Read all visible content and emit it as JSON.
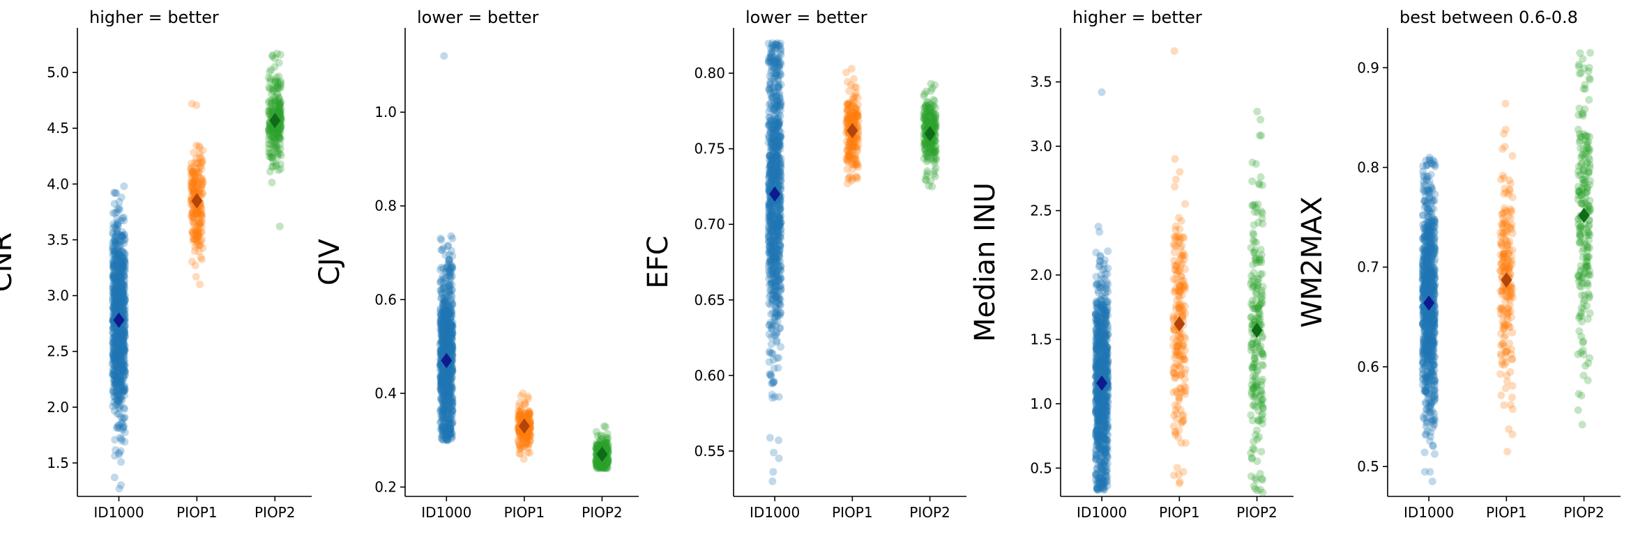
{
  "chart_data": [
    {
      "type": "scatter",
      "subtype": "strip",
      "title": "higher = better",
      "ylabel": "CNR",
      "categories": [
        "ID1000",
        "PIOP1",
        "PIOP2"
      ],
      "ylim": [
        1.2,
        5.4
      ],
      "yticks": [
        1.5,
        2.0,
        2.5,
        3.0,
        3.5,
        4.0,
        4.5,
        5.0
      ],
      "yticklabels": [
        "1.5",
        "2.0",
        "2.5",
        "3.0",
        "3.5",
        "4.0",
        "4.5",
        "5.0"
      ],
      "series": [
        {
          "values": {
            "mean": 2.78,
            "sd": 0.45,
            "min": 1.27,
            "max": 3.98,
            "n": 900
          }
        },
        {
          "values": {
            "mean": 3.85,
            "sd": 0.22,
            "min": 3.1,
            "max": 4.72,
            "n": 210
          }
        },
        {
          "values": {
            "mean": 4.57,
            "sd": 0.22,
            "min": 3.62,
            "max": 5.17,
            "n": 220
          }
        }
      ],
      "means": [
        2.78,
        3.85,
        4.57
      ]
    },
    {
      "type": "scatter",
      "subtype": "strip",
      "title": "lower = better",
      "ylabel": "CJV",
      "categories": [
        "ID1000",
        "PIOP1",
        "PIOP2"
      ],
      "ylim": [
        0.18,
        1.18
      ],
      "yticks": [
        0.2,
        0.4,
        0.6,
        0.8,
        1.0
      ],
      "yticklabels": [
        "0.2",
        "0.4",
        "0.6",
        "0.8",
        "1.0"
      ],
      "series": [
        {
          "values": {
            "mean": 0.47,
            "sd": 0.1,
            "min": 0.3,
            "max": 1.12,
            "n": 900
          }
        },
        {
          "values": {
            "mean": 0.33,
            "sd": 0.025,
            "min": 0.26,
            "max": 0.4,
            "n": 210
          }
        },
        {
          "values": {
            "mean": 0.27,
            "sd": 0.02,
            "min": 0.24,
            "max": 0.33,
            "n": 220
          }
        }
      ],
      "means": [
        0.47,
        0.33,
        0.27
      ]
    },
    {
      "type": "scatter",
      "subtype": "strip",
      "title": "lower = better",
      "ylabel": "EFC",
      "categories": [
        "ID1000",
        "PIOP1",
        "PIOP2"
      ],
      "ylim": [
        0.52,
        0.83
      ],
      "yticks": [
        0.55,
        0.6,
        0.65,
        0.7,
        0.75,
        0.8
      ],
      "yticklabels": [
        "0.55",
        "0.60",
        "0.65",
        "0.70",
        "0.75",
        "0.80"
      ],
      "series": [
        {
          "values": {
            "mean": 0.72,
            "sd": 0.055,
            "min": 0.53,
            "max": 0.82,
            "n": 900
          }
        },
        {
          "values": {
            "mean": 0.762,
            "sd": 0.014,
            "min": 0.727,
            "max": 0.803,
            "n": 210
          }
        },
        {
          "values": {
            "mean": 0.76,
            "sd": 0.013,
            "min": 0.725,
            "max": 0.793,
            "n": 220
          }
        }
      ],
      "means": [
        0.72,
        0.762,
        0.76
      ]
    },
    {
      "type": "scatter",
      "subtype": "strip",
      "title": "higher = better",
      "ylabel": "Median INU",
      "categories": [
        "ID1000",
        "PIOP1",
        "PIOP2"
      ],
      "ylim": [
        0.28,
        3.92
      ],
      "yticks": [
        0.5,
        1.0,
        1.5,
        2.0,
        2.5,
        3.0,
        3.5
      ],
      "yticklabels": [
        "0.5",
        "1.0",
        "1.5",
        "2.0",
        "2.5",
        "3.0",
        "3.5"
      ],
      "series": [
        {
          "values": {
            "mean": 1.16,
            "sd": 0.42,
            "min": 0.33,
            "max": 3.42,
            "n": 900
          }
        },
        {
          "values": {
            "mean": 1.62,
            "sd": 0.5,
            "min": 0.38,
            "max": 3.74,
            "n": 210
          }
        },
        {
          "values": {
            "mean": 1.57,
            "sd": 0.55,
            "min": 0.31,
            "max": 3.27,
            "n": 220
          }
        }
      ],
      "means": [
        1.16,
        1.62,
        1.57
      ]
    },
    {
      "type": "scatter",
      "subtype": "strip",
      "title": "best between 0.6-0.8",
      "ylabel": "WM2MAX",
      "categories": [
        "ID1000",
        "PIOP1",
        "PIOP2"
      ],
      "ylim": [
        0.47,
        0.94
      ],
      "yticks": [
        0.5,
        0.6,
        0.7,
        0.8,
        0.9
      ],
      "yticklabels": [
        "0.5",
        "0.6",
        "0.7",
        "0.8",
        "0.9"
      ],
      "series": [
        {
          "values": {
            "mean": 0.664,
            "sd": 0.06,
            "min": 0.485,
            "max": 0.81,
            "n": 900
          }
        },
        {
          "values": {
            "mean": 0.687,
            "sd": 0.06,
            "min": 0.515,
            "max": 0.864,
            "n": 210
          }
        },
        {
          "values": {
            "mean": 0.752,
            "sd": 0.075,
            "min": 0.542,
            "max": 0.915,
            "n": 220
          }
        }
      ],
      "means": [
        0.664,
        0.687,
        0.752
      ]
    }
  ],
  "colors": {
    "points": [
      "#1f77b4",
      "#ff7f0e",
      "#2ca02c"
    ],
    "means": [
      "#0d1b8e",
      "#b3440a",
      "#0e6b17"
    ]
  },
  "grid": false,
  "legend": "none"
}
